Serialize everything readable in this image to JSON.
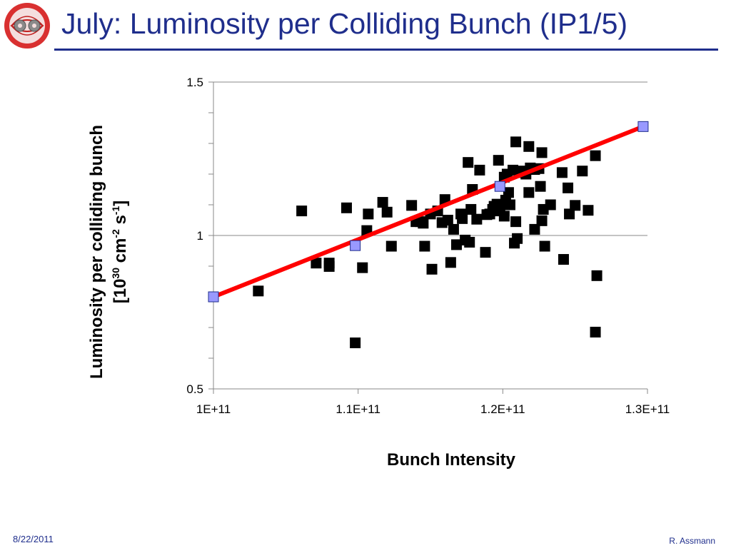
{
  "slide": {
    "title": "July: Luminosity per Colliding Bunch (IP1/5)",
    "date": "8/22/2011",
    "author": "R. Assmann",
    "logo_icon": "lhc-magnet-logo",
    "title_color": "#1f2e8c"
  },
  "chart_data": {
    "type": "scatter",
    "title": "",
    "xlabel": "Bunch Intensity",
    "ylabel_line1": "Luminosity per colliding bunch",
    "ylabel_line2": "[10^30 cm^-2 s^-1]",
    "xlim": [
      100000000000.0,
      130000000000.0
    ],
    "ylim": [
      0.5,
      1.5
    ],
    "x_ticks": [
      {
        "value": 100000000000.0,
        "label": "1E+11"
      },
      {
        "value": 110000000000.0,
        "label": "1.1E+11"
      },
      {
        "value": 120000000000.0,
        "label": "1.2E+11"
      },
      {
        "value": 130000000000.0,
        "label": "1.3E+11"
      }
    ],
    "y_ticks": [
      {
        "value": 0.5,
        "label": "0.5"
      },
      {
        "value": 1,
        "label": "1"
      },
      {
        "value": 1.5,
        "label": "1.5"
      }
    ],
    "grid": "horizontal",
    "series": [
      {
        "marker": "square",
        "color": "#000000",
        "points": [
          [
            103100000000.0,
            0.819
          ],
          [
            106100000000.0,
            1.08
          ],
          [
            107100000000.0,
            0.91
          ],
          [
            108000000000.0,
            0.91
          ],
          [
            108000000000.0,
            0.899
          ],
          [
            109200000000.0,
            1.09
          ],
          [
            109800000000.0,
            0.65
          ],
          [
            110300000000.0,
            0.895
          ],
          [
            110600000000.0,
            1.016
          ],
          [
            110700000000.0,
            1.07
          ],
          [
            111700000000.0,
            1.108
          ],
          [
            112000000000.0,
            1.076
          ],
          [
            112300000000.0,
            0.965
          ],
          [
            113700000000.0,
            1.098
          ],
          [
            114000000000.0,
            1.045
          ],
          [
            114300000000.0,
            1.045
          ],
          [
            114500000000.0,
            1.04
          ],
          [
            114600000000.0,
            0.965
          ],
          [
            115000000000.0,
            1.07
          ],
          [
            115100000000.0,
            0.89
          ],
          [
            115500000000.0,
            1.08
          ],
          [
            115800000000.0,
            1.042
          ],
          [
            116000000000.0,
            1.117
          ],
          [
            116200000000.0,
            1.05
          ],
          [
            116400000000.0,
            0.912
          ],
          [
            116600000000.0,
            1.02
          ],
          [
            116800000000.0,
            0.97
          ],
          [
            117100000000.0,
            1.07
          ],
          [
            117200000000.0,
            1.055
          ],
          [
            117400000000.0,
            0.985
          ],
          [
            117600000000.0,
            1.238
          ],
          [
            117700000000.0,
            0.978
          ],
          [
            117800000000.0,
            1.085
          ],
          [
            117900000000.0,
            1.15
          ],
          [
            118200000000.0,
            1.053
          ],
          [
            118400000000.0,
            1.213
          ],
          [
            118800000000.0,
            0.945
          ],
          [
            118900000000.0,
            1.068
          ],
          [
            119100000000.0,
            1.07
          ],
          [
            119300000000.0,
            1.085
          ],
          [
            119400000000.0,
            1.095
          ],
          [
            119600000000.0,
            1.102
          ],
          [
            119700000000.0,
            1.245
          ],
          [
            119800000000.0,
            1.08
          ],
          [
            119900000000.0,
            1.1
          ],
          [
            120100000000.0,
            1.063
          ],
          [
            120100000000.0,
            1.19
          ],
          [
            120200000000.0,
            1.115
          ],
          [
            120300000000.0,
            1.2
          ],
          [
            120400000000.0,
            1.14
          ],
          [
            120500000000.0,
            1.1
          ],
          [
            120700000000.0,
            1.213
          ],
          [
            120800000000.0,
            0.975
          ],
          [
            120900000000.0,
            1.045
          ],
          [
            120900000000.0,
            1.305
          ],
          [
            121000000000.0,
            0.99
          ],
          [
            121200000000.0,
            1.205
          ],
          [
            121400000000.0,
            1.21
          ],
          [
            121600000000.0,
            1.2
          ],
          [
            121800000000.0,
            1.29
          ],
          [
            121800000000.0,
            1.14
          ],
          [
            121900000000.0,
            1.22
          ],
          [
            122200000000.0,
            1.02
          ],
          [
            122200000000.0,
            1.215
          ],
          [
            122500000000.0,
            1.218
          ],
          [
            122600000000.0,
            1.16
          ],
          [
            122700000000.0,
            1.048
          ],
          [
            122700000000.0,
            1.27
          ],
          [
            122800000000.0,
            1.085
          ],
          [
            122900000000.0,
            0.965
          ],
          [
            123300000000.0,
            1.1
          ],
          [
            124100000000.0,
            1.205
          ],
          [
            124200000000.0,
            0.922
          ],
          [
            124500000000.0,
            1.155
          ],
          [
            124600000000.0,
            1.07
          ],
          [
            125000000000.0,
            1.098
          ],
          [
            125500000000.0,
            1.21
          ],
          [
            125900000000.0,
            1.082
          ],
          [
            126400000000.0,
            1.26
          ],
          [
            126400000000.0,
            0.685
          ],
          [
            126500000000.0,
            0.869
          ]
        ]
      },
      {
        "marker": "square",
        "color": "#9999ff",
        "points": [
          [
            100000000000.0,
            0.8
          ],
          [
            109800000000.0,
            0.967
          ],
          [
            119800000000.0,
            1.16
          ],
          [
            129700000000.0,
            1.355
          ]
        ]
      }
    ],
    "trendline": {
      "color": "#ff0000",
      "from": [
        100000000000.0,
        0.8
      ],
      "to": [
        129700000000.0,
        1.355
      ]
    }
  }
}
